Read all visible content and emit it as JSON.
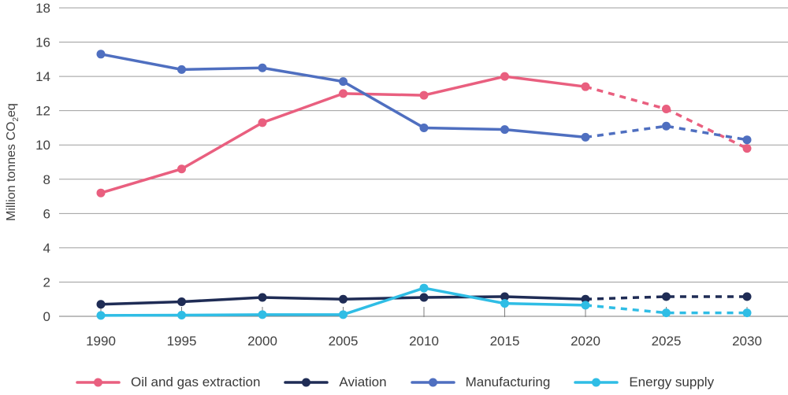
{
  "chart_data": {
    "type": "line",
    "title": "",
    "xlabel": "",
    "ylabel": "Million tonnes CO2eq",
    "ylabel_parts": {
      "pre": "Million tonnes CO",
      "sub": "2",
      "post": "eq"
    },
    "x": [
      1990,
      1995,
      2000,
      2005,
      2010,
      2015,
      2020,
      2025,
      2030
    ],
    "yticks": [
      0,
      2,
      4,
      6,
      8,
      10,
      12,
      14,
      16,
      18
    ],
    "ylim": [
      0,
      18
    ],
    "grid": true,
    "legend_position": "bottom",
    "dashed_from_x": 2020,
    "colors": {
      "grid": "#9e9e9e",
      "axis": "#7d7d7d",
      "text": "#404040"
    },
    "series": [
      {
        "name": "Oil and gas extraction",
        "color": "#e95f7f",
        "values": [
          7.2,
          8.6,
          11.3,
          13.0,
          12.9,
          14.0,
          13.4,
          12.1,
          9.8
        ]
      },
      {
        "name": "Aviation",
        "color": "#1f2c55",
        "values": [
          0.7,
          0.85,
          1.1,
          1.0,
          1.1,
          1.15,
          1.0,
          1.15,
          1.15
        ]
      },
      {
        "name": "Manufacturing",
        "color": "#4f6fc0",
        "values": [
          15.3,
          14.4,
          14.5,
          13.7,
          11.0,
          10.9,
          10.45,
          11.1,
          10.3
        ]
      },
      {
        "name": "Energy supply",
        "color": "#2fbde5",
        "values": [
          0.05,
          0.07,
          0.1,
          0.1,
          1.65,
          0.75,
          0.65,
          0.2,
          0.2
        ]
      }
    ]
  }
}
